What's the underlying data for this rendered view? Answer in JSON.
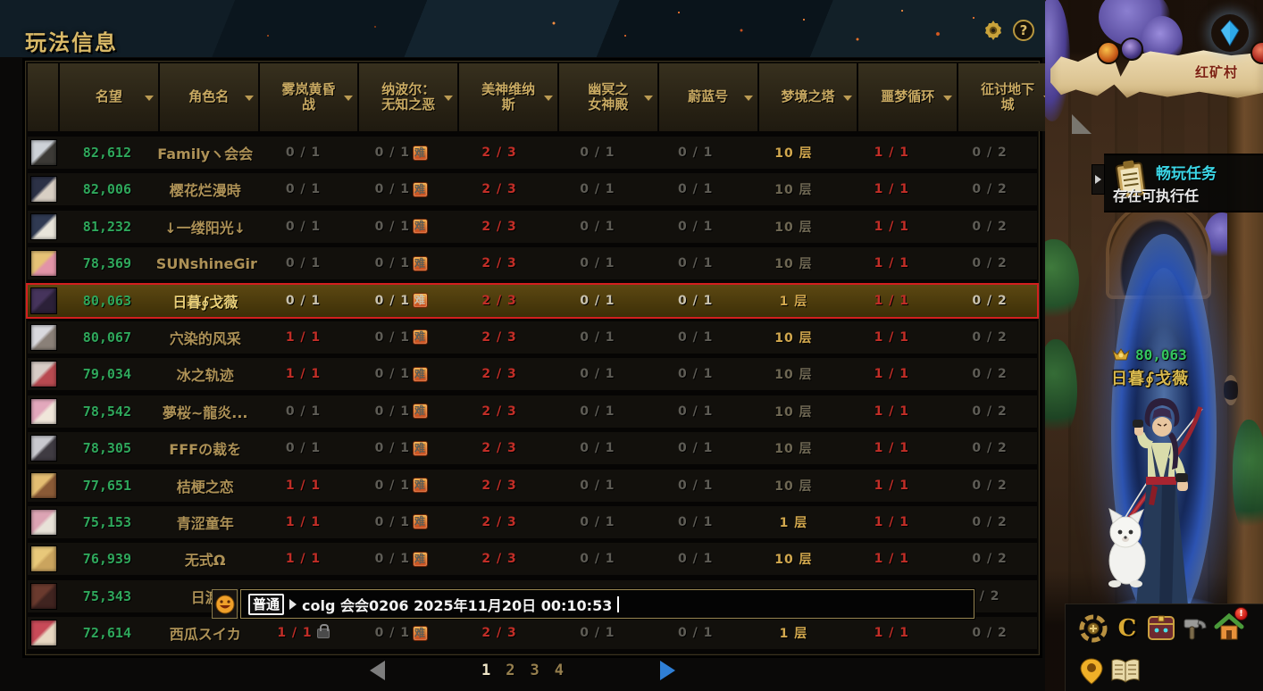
{
  "window": {
    "title": "玩法信息"
  },
  "table": {
    "columns": [
      {
        "label": "",
        "sortable": false
      },
      {
        "label": "名望",
        "sortable": true
      },
      {
        "label": "角色名",
        "sortable": true
      },
      {
        "label": "雾岚黄昏\n战",
        "sortable": true
      },
      {
        "label": "纳波尔：\n无知之恶",
        "sortable": true
      },
      {
        "label": "美神维纳\n斯",
        "sortable": true
      },
      {
        "label": "幽冥之\n女神殿",
        "sortable": true
      },
      {
        "label": "蔚蓝号",
        "sortable": true
      },
      {
        "label": "梦境之塔",
        "sortable": true
      },
      {
        "label": "噩梦循环",
        "sortable": true
      },
      {
        "label": "征讨地下\n城",
        "sortable": true
      }
    ],
    "rows": [
      {
        "fame": "82,612",
        "name": "Familyヽ会会",
        "avatar": [
          "#cdd2d8",
          "#3c3a36"
        ],
        "cells": [
          {
            "t": "0 / 1",
            "c": "dim"
          },
          {
            "t": "0 / 1",
            "c": "dim",
            "badge": "难"
          },
          {
            "t": "2 / 3",
            "c": "red"
          },
          {
            "t": "0 / 1",
            "c": "dim"
          },
          {
            "t": "0 / 1",
            "c": "dim"
          },
          {
            "t": "10 层",
            "c": "gold"
          },
          {
            "t": "1 / 1",
            "c": "red"
          },
          {
            "t": "0 / 2",
            "c": "dim"
          }
        ]
      },
      {
        "fame": "82,006",
        "name": "樱花烂漫時",
        "avatar": [
          "#2c3146",
          "#d8cfc4"
        ],
        "cells": [
          {
            "t": "0 / 1",
            "c": "dim"
          },
          {
            "t": "0 / 1",
            "c": "dim",
            "badge": "难"
          },
          {
            "t": "2 / 3",
            "c": "red"
          },
          {
            "t": "0 / 1",
            "c": "dim"
          },
          {
            "t": "0 / 1",
            "c": "dim"
          },
          {
            "t": "10 层",
            "c": "dimgold"
          },
          {
            "t": "1 / 1",
            "c": "red"
          },
          {
            "t": "0 / 2",
            "c": "dim"
          }
        ]
      },
      {
        "fame": "81,232",
        "name": "↓一缕阳光↓",
        "avatar": [
          "#303a52",
          "#e8e4da"
        ],
        "cells": [
          {
            "t": "0 / 1",
            "c": "dim"
          },
          {
            "t": "0 / 1",
            "c": "dim",
            "badge": "难"
          },
          {
            "t": "2 / 3",
            "c": "red"
          },
          {
            "t": "0 / 1",
            "c": "dim"
          },
          {
            "t": "0 / 1",
            "c": "dim"
          },
          {
            "t": "10 层",
            "c": "dimgold"
          },
          {
            "t": "1 / 1",
            "c": "red"
          },
          {
            "t": "0 / 2",
            "c": "dim"
          }
        ]
      },
      {
        "fame": "78,369",
        "name": "SUNshineGir",
        "avatar": [
          "#e6c276",
          "#e294a8"
        ],
        "cells": [
          {
            "t": "0 / 1",
            "c": "dim"
          },
          {
            "t": "0 / 1",
            "c": "dim",
            "badge": "难"
          },
          {
            "t": "2 / 3",
            "c": "red"
          },
          {
            "t": "0 / 1",
            "c": "dim"
          },
          {
            "t": "0 / 1",
            "c": "dim"
          },
          {
            "t": "10 层",
            "c": "dimgold"
          },
          {
            "t": "1 / 1",
            "c": "red"
          },
          {
            "t": "0 / 2",
            "c": "dim"
          }
        ]
      },
      {
        "fame": "80,063",
        "name": "日暮∮戈薇",
        "highlight": true,
        "avatar": [
          "#46345c",
          "#2b2038"
        ],
        "cells": [
          {
            "t": "0 / 1",
            "c": "lt"
          },
          {
            "t": "0 / 1",
            "c": "lt",
            "badge": "难"
          },
          {
            "t": "2 / 3",
            "c": "red"
          },
          {
            "t": "0 / 1",
            "c": "lt"
          },
          {
            "t": "0 / 1",
            "c": "lt"
          },
          {
            "t": "1 层",
            "c": "gold"
          },
          {
            "t": "1 / 1",
            "c": "red"
          },
          {
            "t": "0 / 2",
            "c": "lt"
          }
        ]
      },
      {
        "fame": "80,067",
        "name": "穴染的风采",
        "avatar": [
          "#d9d9de",
          "#8a8078"
        ],
        "cells": [
          {
            "t": "1 / 1",
            "c": "red"
          },
          {
            "t": "0 / 1",
            "c": "dim",
            "badge": "难"
          },
          {
            "t": "2 / 3",
            "c": "red"
          },
          {
            "t": "0 / 1",
            "c": "dim"
          },
          {
            "t": "0 / 1",
            "c": "dim"
          },
          {
            "t": "10 层",
            "c": "gold"
          },
          {
            "t": "1 / 1",
            "c": "red"
          },
          {
            "t": "0 / 2",
            "c": "dim"
          }
        ]
      },
      {
        "fame": "79,034",
        "name": "冰之轨迹",
        "avatar": [
          "#d8ccc6",
          "#b84a50"
        ],
        "cells": [
          {
            "t": "1 / 1",
            "c": "red"
          },
          {
            "t": "0 / 1",
            "c": "dim",
            "badge": "难"
          },
          {
            "t": "2 / 3",
            "c": "red"
          },
          {
            "t": "0 / 1",
            "c": "dim"
          },
          {
            "t": "0 / 1",
            "c": "dim"
          },
          {
            "t": "10 层",
            "c": "dimgold"
          },
          {
            "t": "1 / 1",
            "c": "red"
          },
          {
            "t": "0 / 2",
            "c": "dim"
          }
        ]
      },
      {
        "fame": "78,542",
        "name": "夢桜~龍炎...",
        "avatar": [
          "#e2a8bc",
          "#f0e6da"
        ],
        "cells": [
          {
            "t": "0 / 1",
            "c": "dim"
          },
          {
            "t": "0 / 1",
            "c": "dim",
            "badge": "难"
          },
          {
            "t": "2 / 3",
            "c": "red"
          },
          {
            "t": "0 / 1",
            "c": "dim"
          },
          {
            "t": "0 / 1",
            "c": "dim"
          },
          {
            "t": "10 层",
            "c": "dimgold"
          },
          {
            "t": "1 / 1",
            "c": "red"
          },
          {
            "t": "0 / 2",
            "c": "dim"
          }
        ]
      },
      {
        "fame": "78,305",
        "name": "FFFの裁を",
        "avatar": [
          "#c9c9cf",
          "#3f3b42"
        ],
        "cells": [
          {
            "t": "0 / 1",
            "c": "dim"
          },
          {
            "t": "0 / 1",
            "c": "dim",
            "badge": "难"
          },
          {
            "t": "2 / 3",
            "c": "red"
          },
          {
            "t": "0 / 1",
            "c": "dim"
          },
          {
            "t": "0 / 1",
            "c": "dim"
          },
          {
            "t": "10 层",
            "c": "dimgold"
          },
          {
            "t": "1 / 1",
            "c": "red"
          },
          {
            "t": "0 / 2",
            "c": "dim"
          }
        ]
      },
      {
        "fame": "77,651",
        "name": "桔梗之恋",
        "avatar": [
          "#e4bd72",
          "#8a5a36"
        ],
        "cells": [
          {
            "t": "1 / 1",
            "c": "red"
          },
          {
            "t": "0 / 1",
            "c": "dim",
            "badge": "难"
          },
          {
            "t": "2 / 3",
            "c": "red"
          },
          {
            "t": "0 / 1",
            "c": "dim"
          },
          {
            "t": "0 / 1",
            "c": "dim"
          },
          {
            "t": "10 层",
            "c": "dimgold"
          },
          {
            "t": "1 / 1",
            "c": "red"
          },
          {
            "t": "0 / 2",
            "c": "dim"
          }
        ]
      },
      {
        "fame": "75,153",
        "name": "青涩童年",
        "avatar": [
          "#dca4b4",
          "#e8e2d8"
        ],
        "cells": [
          {
            "t": "1 / 1",
            "c": "red"
          },
          {
            "t": "0 / 1",
            "c": "dim",
            "badge": "难"
          },
          {
            "t": "2 / 3",
            "c": "red"
          },
          {
            "t": "0 / 1",
            "c": "dim"
          },
          {
            "t": "0 / 1",
            "c": "dim"
          },
          {
            "t": "1 层",
            "c": "gold"
          },
          {
            "t": "1 / 1",
            "c": "red"
          },
          {
            "t": "0 / 2",
            "c": "dim"
          }
        ]
      },
      {
        "fame": "76,939",
        "name": "无式Ω",
        "avatar": [
          "#e8c87a",
          "#caa45e"
        ],
        "cells": [
          {
            "t": "1 / 1",
            "c": "red"
          },
          {
            "t": "0 / 1",
            "c": "dim",
            "badge": "难"
          },
          {
            "t": "2 / 3",
            "c": "red"
          },
          {
            "t": "0 / 1",
            "c": "dim"
          },
          {
            "t": "0 / 1",
            "c": "dim"
          },
          {
            "t": "10 层",
            "c": "gold"
          },
          {
            "t": "1 / 1",
            "c": "red"
          },
          {
            "t": "0 / 2",
            "c": "dim"
          }
        ]
      },
      {
        "fame": "75,343",
        "name": "日渡",
        "overlay": true,
        "avatar": [
          "#6a3a2e",
          "#402420"
        ],
        "cells": [
          {
            "t": ""
          },
          {
            "t": ""
          },
          {
            "t": ""
          },
          {
            "t": ""
          },
          {
            "t": ""
          },
          {
            "t": ""
          },
          {
            "t": ""
          },
          {
            "t": "/ 2",
            "c": "dim"
          }
        ]
      },
      {
        "fame": "72,614",
        "name": "西瓜スイカ",
        "avatar": [
          "#c84a58",
          "#e8d8c2"
        ],
        "cells": [
          {
            "t": "1 / 1",
            "c": "red",
            "lock": true
          },
          {
            "t": "0 / 1",
            "c": "dim",
            "badge": "难"
          },
          {
            "t": "2 / 3",
            "c": "red"
          },
          {
            "t": "0 / 1",
            "c": "dim"
          },
          {
            "t": "0 / 1",
            "c": "dim"
          },
          {
            "t": "1 层",
            "c": "gold"
          },
          {
            "t": "1 / 1",
            "c": "red"
          },
          {
            "t": "0 / 2",
            "c": "dim"
          }
        ]
      }
    ]
  },
  "chat": {
    "channel": "普通",
    "message": "colg 会会0206 2025年11月20日 00:10:53"
  },
  "pagination": {
    "pages": [
      "1",
      "2",
      "3",
      "4"
    ],
    "current": "1"
  },
  "scene": {
    "map_label": "红矿村",
    "task_title": "畅玩任务",
    "task_subtitle": "存在可执行任",
    "char_fame": "80,063",
    "char_name": "日暮∮戈薇"
  },
  "dock_icons": [
    "badge-emblem",
    "guild-coin",
    "treasure-chest",
    "forge-hammer",
    "home",
    "map-pin",
    "adventure-book"
  ],
  "colors": {
    "fame_green": "#2fa75b",
    "value_red": "#c12e27",
    "accent_gold": "#c9aa62",
    "highlight_border": "#d31f1f",
    "task_title_cyan": "#3bd6e6",
    "hard_badge": "#d06018"
  }
}
